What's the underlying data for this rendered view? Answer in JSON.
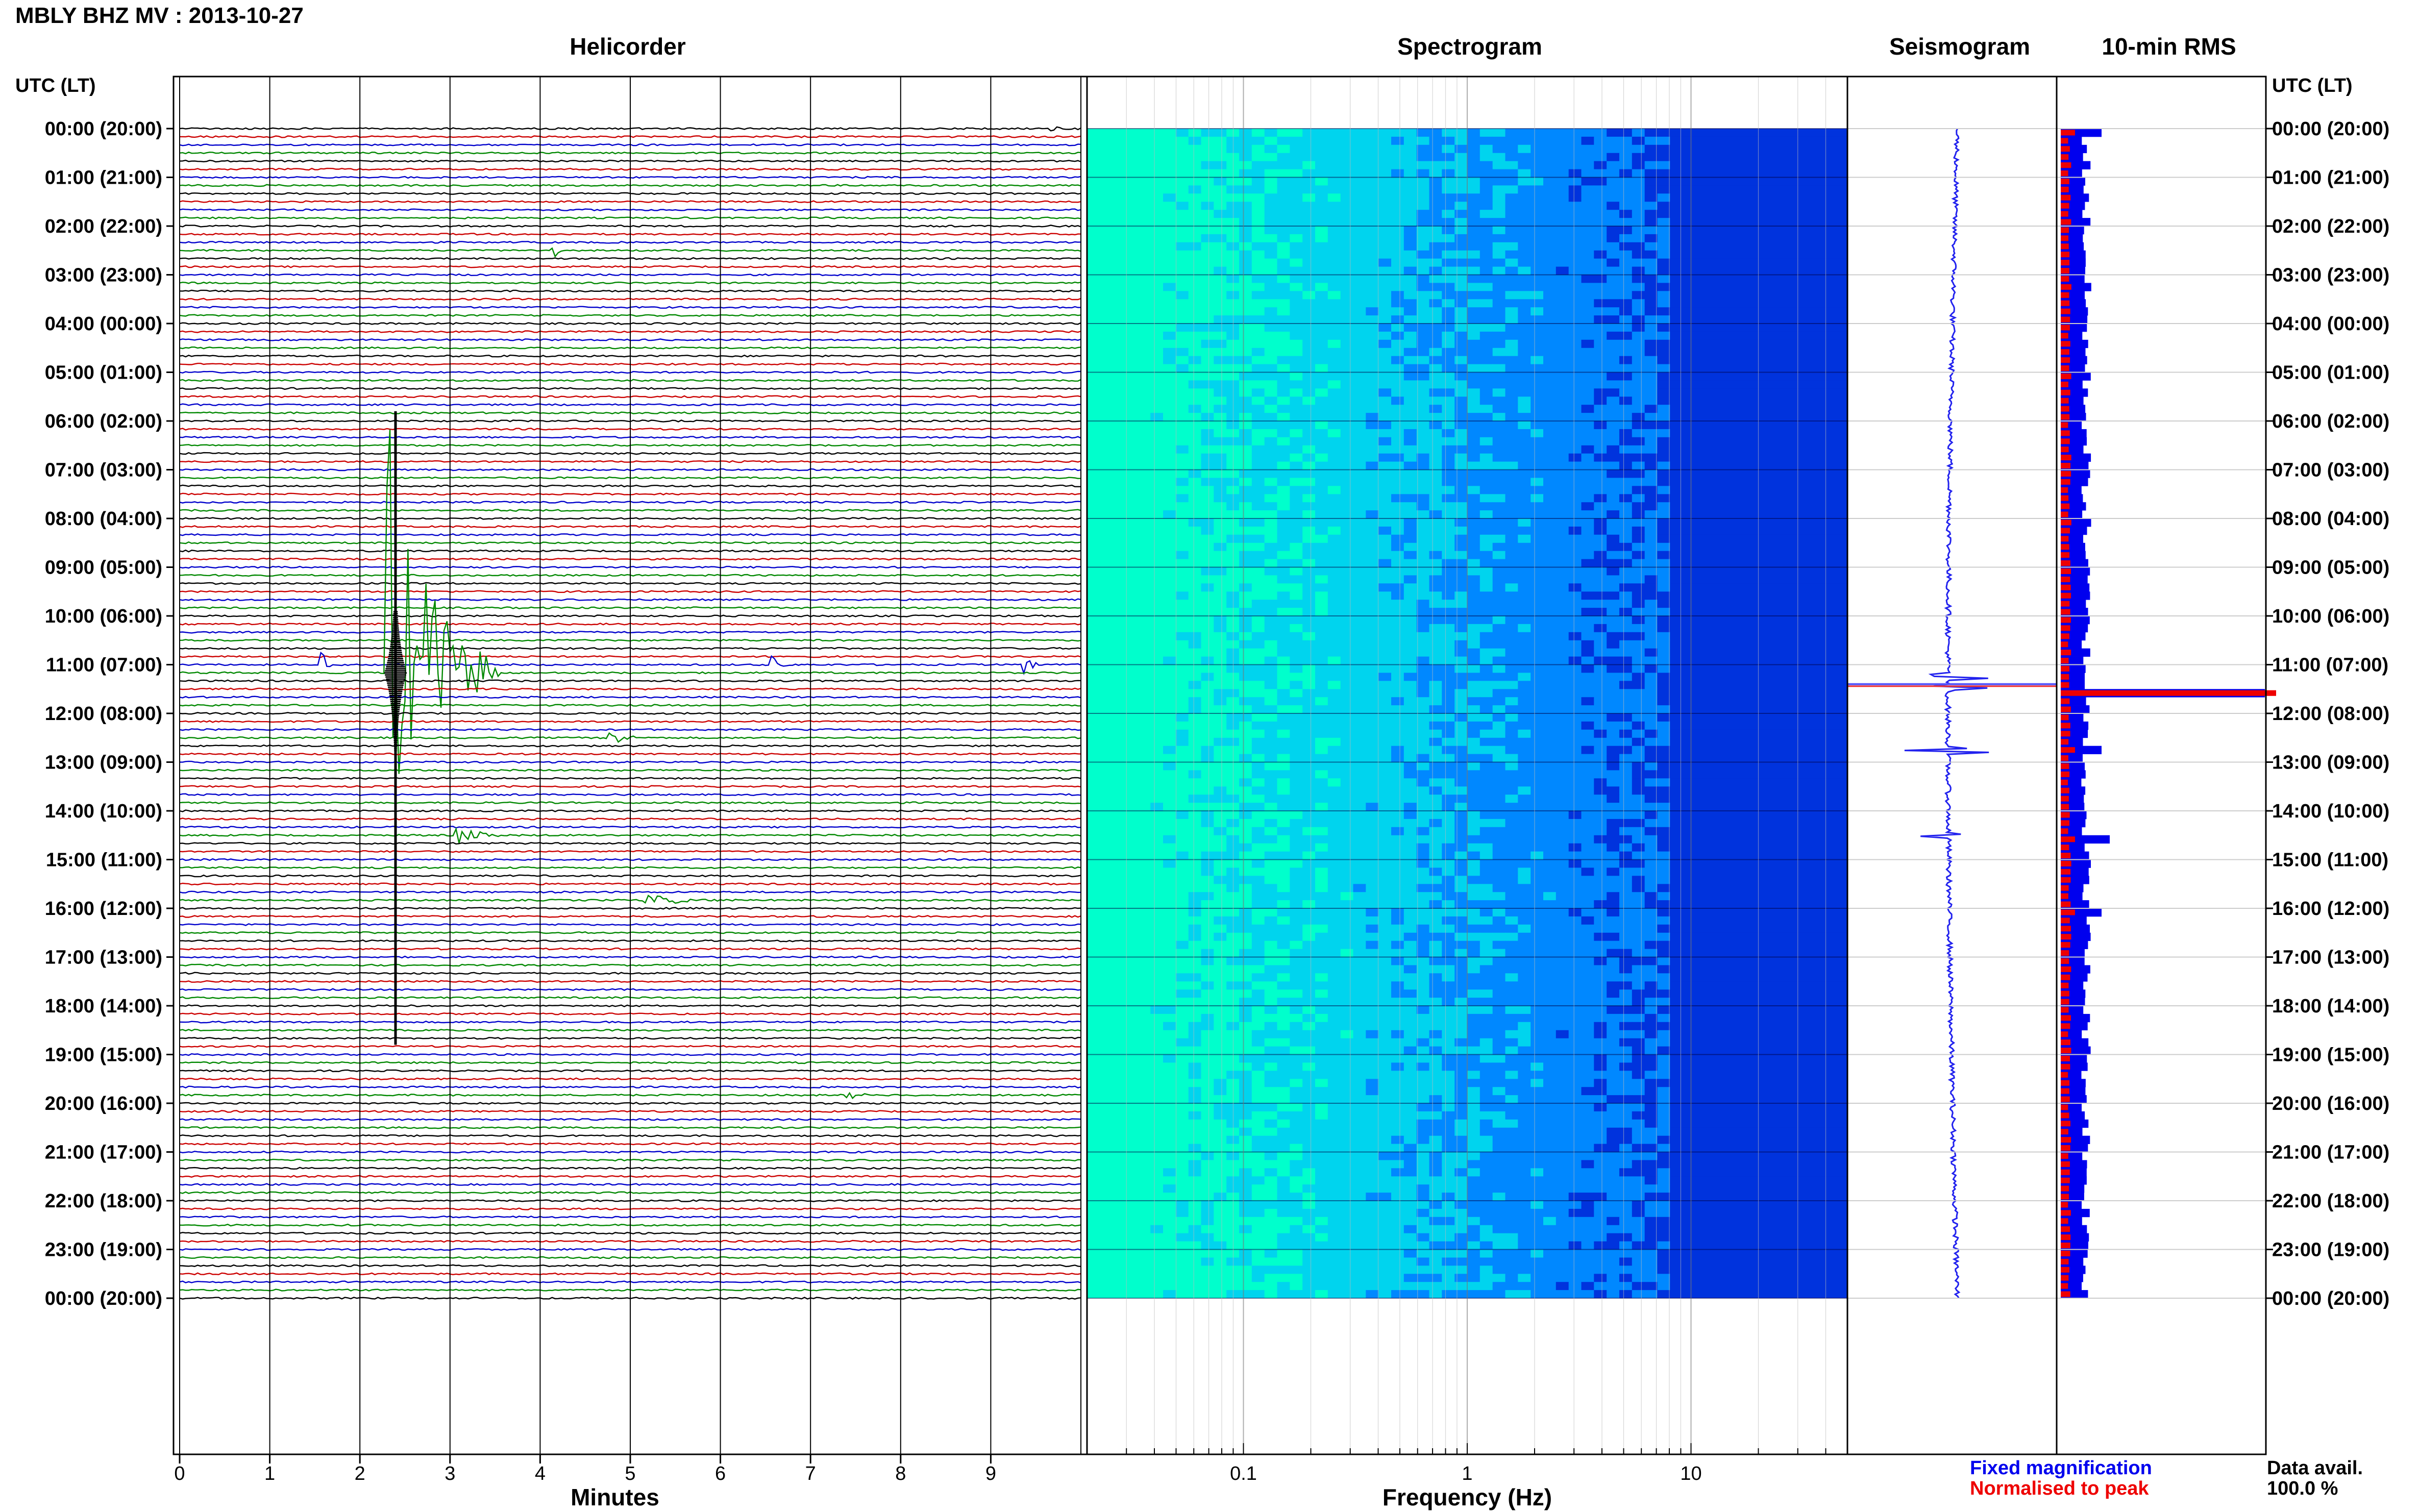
{
  "title": "MBLY BHZ MV : 2013-10-27",
  "panels": {
    "helicorder": "Helicorder",
    "spectrogram": "Spectrogram",
    "seismogram": "Seismogram",
    "rms": "10-min RMS"
  },
  "axis_left_header": "UTC (LT)",
  "axis_right_header": "UTC (LT)",
  "legend": {
    "fixed": "Fixed magnification",
    "normalised": "Normalised to peak",
    "fixed_color": "#0000ee",
    "normalised_color": "#ee0000"
  },
  "data_avail": {
    "label": "Data avail.",
    "value": "100.0 %"
  },
  "chart_data": [
    {
      "type": "line",
      "name": "helicorder",
      "xlabel": "Minutes",
      "x_ticks": [
        "0",
        "1",
        "2",
        "3",
        "4",
        "5",
        "6",
        "7",
        "8",
        "9"
      ],
      "xlim": [
        0,
        10
      ],
      "trace_colors": [
        "#000000",
        "#cc0000",
        "#0000cc",
        "#008800"
      ],
      "traces_per_hour": 6,
      "y_ticks": [
        "00:00 (20:00)",
        "01:00 (21:00)",
        "02:00 (22:00)",
        "03:00 (23:00)",
        "04:00 (00:00)",
        "05:00 (01:00)",
        "06:00 (02:00)",
        "07:00 (03:00)",
        "08:00 (04:00)",
        "09:00 (05:00)",
        "10:00 (06:00)",
        "11:00 (07:00)",
        "12:00 (08:00)",
        "13:00 (09:00)",
        "14:00 (10:00)",
        "15:00 (11:00)",
        "16:00 (12:00)",
        "17:00 (13:00)",
        "18:00 (14:00)",
        "19:00 (15:00)",
        "20:00 (16:00)",
        "21:00 (17:00)",
        "22:00 (18:00)",
        "23:00 (19:00)",
        "00:00 (20:00)"
      ],
      "events": [
        {
          "hour": 0.0,
          "minute": 9.7,
          "amp": 0.8,
          "dur": 0.5
        },
        {
          "hour": 2.5,
          "minute": 4.15,
          "amp": 1.2,
          "dur": 0.2
        },
        {
          "hour": 11.0,
          "minute": 1.6,
          "amp": 2.0,
          "dur": 0.15
        },
        {
          "hour": 11.0,
          "minute": 6.6,
          "amp": 1.5,
          "dur": 0.2
        },
        {
          "hour": 11.0,
          "minute": 9.4,
          "amp": 1.5,
          "dur": 0.2
        },
        {
          "hour": 11.17,
          "minute": 2.35,
          "amp": 40.0,
          "dur": 1.2
        },
        {
          "hour": 12.5,
          "minute": 4.8,
          "amp": 1.8,
          "dur": 0.3
        },
        {
          "hour": 14.5,
          "minute": 3.1,
          "amp": 1.8,
          "dur": 0.5
        },
        {
          "hour": 15.83,
          "minute": 5.2,
          "amp": 0.8,
          "dur": 1.2
        },
        {
          "hour": 19.83,
          "minute": 7.4,
          "amp": 0.8,
          "dur": 0.3
        }
      ]
    },
    {
      "type": "heatmap",
      "name": "spectrogram",
      "xlabel": "Frequency (Hz)",
      "x_scale": "log",
      "xlim": [
        0.02,
        50
      ],
      "x_ticks": [
        0.1,
        1,
        10
      ],
      "x_tick_labels": [
        "0.1",
        "1",
        "10"
      ],
      "colormap": [
        "#00ffcc",
        "#00d4ee",
        "#0088ff",
        "#0033dd",
        "#0000aa"
      ]
    },
    {
      "type": "line",
      "name": "seismogram",
      "events_hours": [
        11.25,
        11.5,
        12.75,
        14.5
      ]
    },
    {
      "type": "bar",
      "name": "10-min RMS",
      "series": [
        {
          "name": "Fixed magnification",
          "color": "#0000ee"
        },
        {
          "name": "Normalised to peak",
          "color": "#ee0000"
        }
      ],
      "peaks": [
        {
          "hour": 0.0,
          "value": 1.0
        },
        {
          "hour": 11.5,
          "value": 5.0
        },
        {
          "hour": 12.67,
          "value": 1.0
        },
        {
          "hour": 14.5,
          "value": 1.2
        },
        {
          "hour": 16.0,
          "value": 1.0
        }
      ]
    }
  ]
}
